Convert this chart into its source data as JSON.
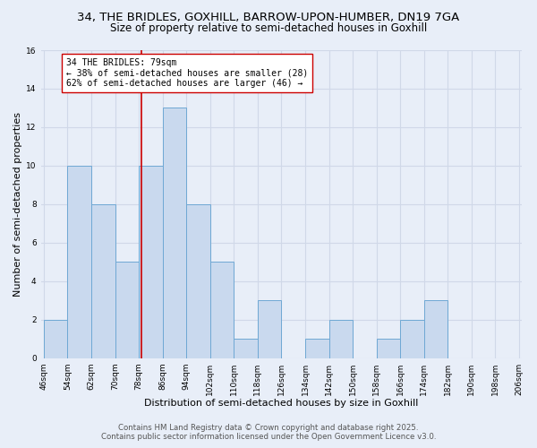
{
  "title_line1": "34, THE BRIDLES, GOXHILL, BARROW-UPON-HUMBER, DN19 7GA",
  "title_line2": "Size of property relative to semi-detached houses in Goxhill",
  "xlabel": "Distribution of semi-detached houses by size in Goxhill",
  "ylabel": "Number of semi-detached properties",
  "bin_edges": [
    46,
    54,
    62,
    70,
    78,
    86,
    94,
    102,
    110,
    118,
    126,
    134,
    142,
    150,
    158,
    166,
    174,
    182,
    190,
    198,
    206
  ],
  "bar_heights": [
    2,
    10,
    8,
    5,
    10,
    13,
    8,
    5,
    1,
    3,
    0,
    1,
    2,
    0,
    1,
    2,
    3,
    0,
    0,
    0
  ],
  "bar_color": "#c9d9ee",
  "bar_edge_color": "#6fa8d4",
  "property_size": 79,
  "property_line_color": "#cc0000",
  "annotation_text": "34 THE BRIDLES: 79sqm\n← 38% of semi-detached houses are smaller (28)\n62% of semi-detached houses are larger (46) →",
  "annotation_box_color": "white",
  "annotation_box_edge": "#cc0000",
  "ylim": [
    0,
    16
  ],
  "yticks": [
    0,
    2,
    4,
    6,
    8,
    10,
    12,
    14,
    16
  ],
  "background_color": "#e8eef8",
  "grid_color": "#d0d8e8",
  "footer_line1": "Contains HM Land Registry data © Crown copyright and database right 2025.",
  "footer_line2": "Contains public sector information licensed under the Open Government Licence v3.0.",
  "title_fontsize": 9.5,
  "subtitle_fontsize": 8.5,
  "axis_label_fontsize": 8,
  "tick_fontsize": 6.5,
  "annotation_fontsize": 7,
  "footer_fontsize": 6.2
}
